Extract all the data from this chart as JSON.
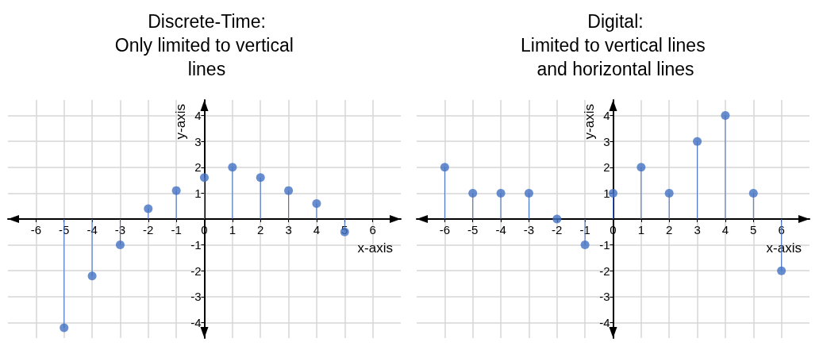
{
  "chart_data": [
    {
      "type": "lollipop",
      "title": "Discrete-Time:",
      "subtitle": "Only limited to vertical lines",
      "xlabel": "x-axis",
      "ylabel": "y-axis",
      "x": [
        -5,
        -4,
        -3,
        -2,
        -1,
        0,
        1,
        2,
        3,
        4,
        5
      ],
      "values": [
        -4.2,
        -2.2,
        -1,
        0.4,
        1.1,
        1.6,
        2,
        1.6,
        1.1,
        0.6,
        -0.5
      ],
      "color": "#4472c4",
      "marker": "circle",
      "grid": true,
      "xlim": [
        -7,
        7
      ],
      "ylim": [
        -4.6,
        4.6
      ],
      "xticks": [
        -6,
        -5,
        -4,
        -3,
        -2,
        -1,
        0,
        1,
        2,
        3,
        4,
        5,
        6
      ],
      "yticks": [
        -4,
        -3,
        -2,
        -1,
        {
          "value": 0,
          "label": null
        },
        1,
        2,
        3,
        4
      ]
    },
    {
      "type": "lollipop",
      "title": "Digital:",
      "subtitle": "Limited to vertical lines and horizontal lines",
      "xlabel": "x-axis",
      "ylabel": "y-axis",
      "x": [
        -6,
        -5,
        -4,
        -3,
        -2,
        -1,
        0,
        1,
        2,
        3,
        4,
        5,
        6
      ],
      "values": [
        2,
        1,
        1,
        1,
        0,
        -1,
        1,
        2,
        1,
        3,
        4,
        1,
        -2
      ],
      "color": "#4472c4",
      "marker": "circle",
      "grid": true,
      "xlim": [
        -7,
        7
      ],
      "ylim": [
        -4.6,
        4.6
      ],
      "xticks": [
        -6,
        -5,
        -4,
        -3,
        -2,
        -1,
        0,
        1,
        2,
        3,
        4,
        5,
        6
      ],
      "yticks": [
        -4,
        -3,
        -2,
        -1,
        {
          "value": 0,
          "label": null
        },
        1,
        2,
        3,
        4
      ]
    }
  ]
}
